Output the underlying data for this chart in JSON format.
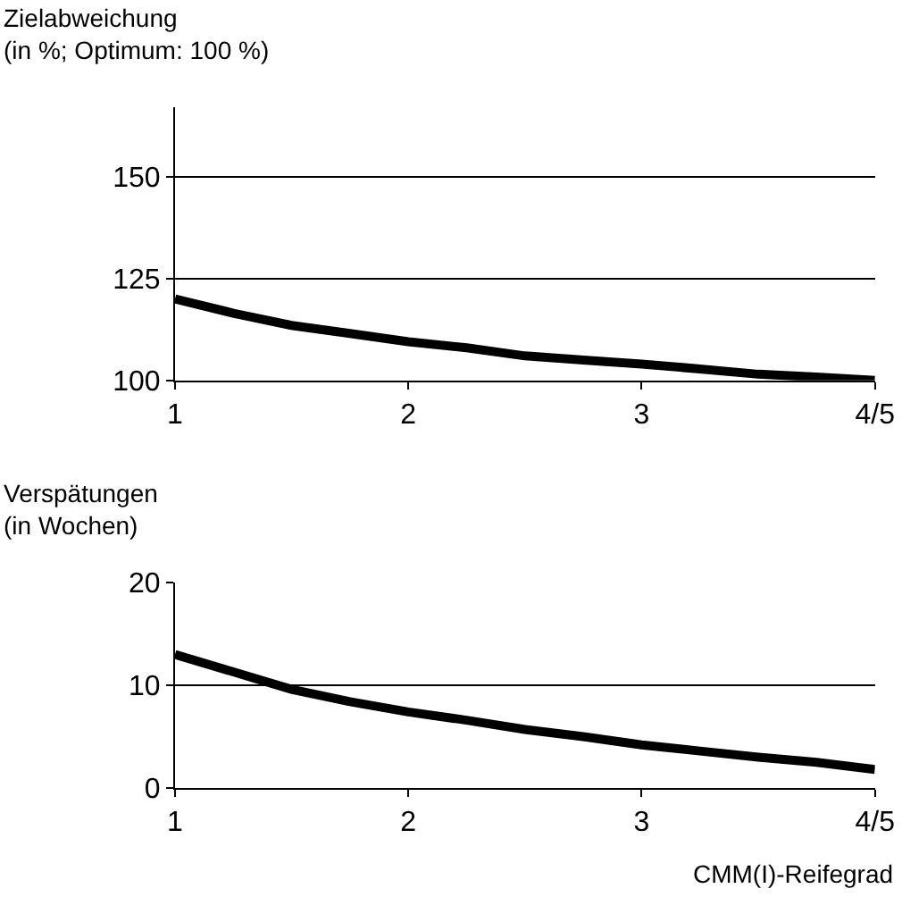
{
  "chart_data": [
    {
      "type": "line",
      "ylabel": "Zielabweichung\n(in %; Optimum: 100 %)",
      "categories": [
        "1",
        null,
        null,
        null,
        "2",
        null,
        null,
        null,
        "3",
        null,
        null,
        null,
        "4/5"
      ],
      "series": [
        {
          "color": "#000000",
          "values": [
            120,
            116.5,
            113.5,
            111.5,
            109.5,
            108,
            106,
            105,
            104,
            102.8,
            101.5,
            100.8,
            100
          ]
        }
      ],
      "ylim": [
        100,
        167
      ],
      "yticks": [
        100,
        125,
        150
      ],
      "grid": "y",
      "marker": "none",
      "line_style": "solid"
    },
    {
      "type": "line",
      "ylabel": "Verspätungen\n(in Wochen)",
      "xlabel": "CMM(I)-Reifegrad",
      "categories": [
        "1",
        null,
        null,
        null,
        "2",
        null,
        null,
        null,
        "3",
        null,
        null,
        null,
        "4/5"
      ],
      "series": [
        {
          "color": "#000000",
          "values": [
            13,
            11.3,
            9.6,
            8.4,
            7.4,
            6.6,
            5.7,
            5,
            4.2,
            3.6,
            3,
            2.5,
            1.8
          ]
        }
      ],
      "ylim": [
        0,
        20
      ],
      "yticks": [
        0,
        10,
        20
      ],
      "grid": "y",
      "marker": "none",
      "line_style": "solid"
    }
  ]
}
